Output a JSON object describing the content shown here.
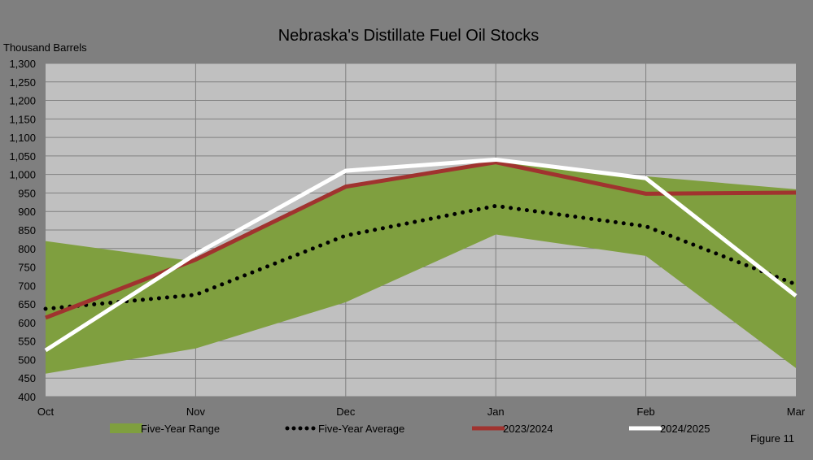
{
  "chart_data": {
    "type": "area",
    "title": "Nebraska's Distillate Fuel Oil Stocks",
    "ylabel": "Thousand Barrels",
    "xlabel": "",
    "categories": [
      "Oct",
      "Nov",
      "Dec",
      "Jan",
      "Feb",
      "Mar"
    ],
    "ylim": [
      400,
      1300
    ],
    "ytick_step": 50,
    "grid": true,
    "legend_placement": "bottom",
    "series": [
      {
        "name": "Five-Year Range",
        "kind": "range",
        "color": "#7f9f3f",
        "low": [
          462,
          530,
          655,
          838,
          780,
          477
        ],
        "high": [
          820,
          765,
          965,
          1035,
          995,
          960
        ]
      },
      {
        "name": "Five-Year Average",
        "kind": "dotted-line",
        "color": "#000000",
        "values": [
          637,
          675,
          835,
          915,
          860,
          703
        ]
      },
      {
        "name": "2023/2024",
        "kind": "line",
        "color": "#a0332f",
        "values": [
          613,
          770,
          967,
          1033,
          948,
          951
        ]
      },
      {
        "name": "2024/2025",
        "kind": "line",
        "color": "#ffffff",
        "values": [
          525,
          785,
          1010,
          1040,
          990,
          672
        ]
      }
    ],
    "annotation": "Figure 11"
  }
}
